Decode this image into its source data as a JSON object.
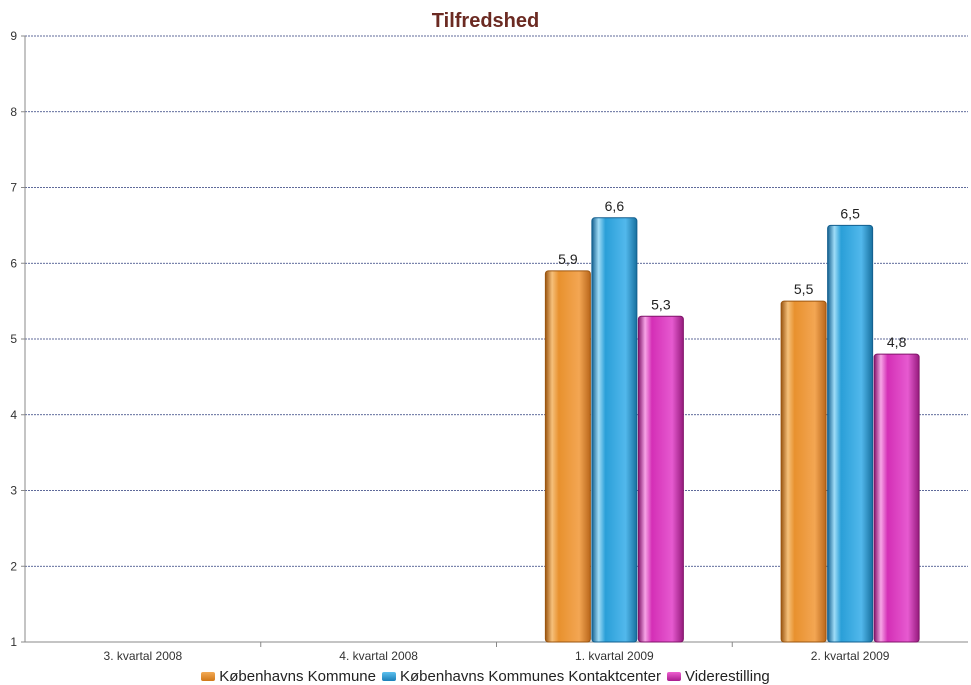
{
  "chart_data": {
    "type": "bar",
    "title": "Tilfredshed",
    "categories": [
      "3. kvartal 2008",
      "4. kvartal 2008",
      "1. kvartal 2009",
      "2. kvartal 2009"
    ],
    "series": [
      {
        "name": "Københavns Kommune",
        "color": "#e8912e",
        "values": [
          null,
          null,
          5.9,
          5.5
        ],
        "labels": [
          "",
          "",
          "5,9",
          "5,5"
        ]
      },
      {
        "name": "Københavns Kommunes Kontaktcenter",
        "color": "#2a9fd8",
        "values": [
          null,
          null,
          6.6,
          6.5
        ],
        "labels": [
          "",
          "",
          "6,6",
          "6,5"
        ]
      },
      {
        "name": "Viderestilling",
        "color": "#d42fb6",
        "values": [
          null,
          null,
          5.3,
          4.8
        ],
        "labels": [
          "",
          "",
          "5,3",
          "4,8"
        ]
      }
    ],
    "ylim": [
      1,
      9
    ],
    "yticks": [
      "1",
      "2",
      "3",
      "4",
      "5",
      "6",
      "7",
      "8",
      "9"
    ],
    "grid": true,
    "legend_position": "bottom",
    "xlabel": "",
    "ylabel": ""
  }
}
